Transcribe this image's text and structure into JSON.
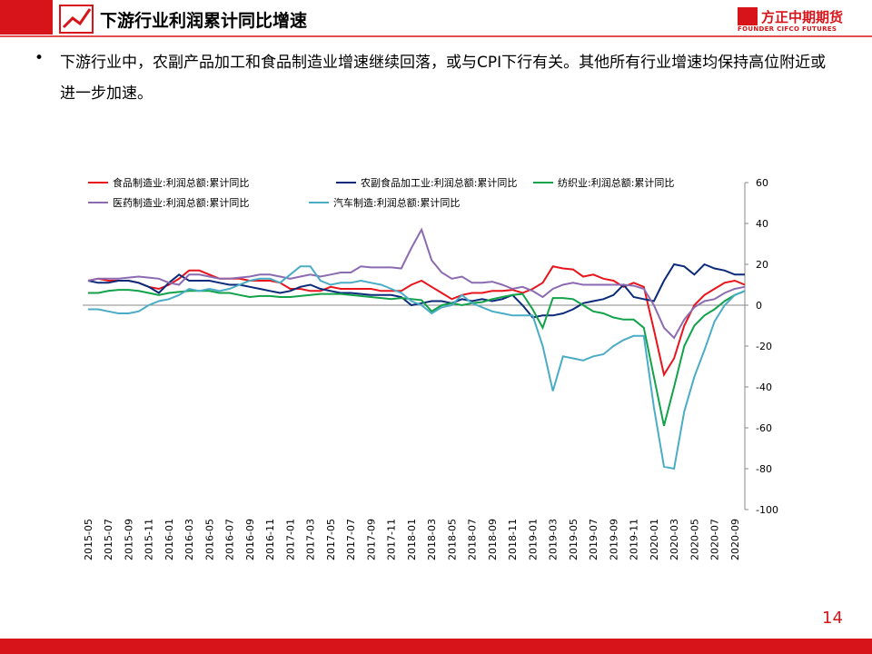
{
  "header": {
    "title": "下游行业利润累计同比增速",
    "logo": "方正中期期货",
    "logo_en": "FOUNDER CIFCO FUTURES"
  },
  "body": {
    "bullet": "下游行业中，农副产品加工和食品制造业增速继续回落，或与CPI下行有关。其他所有行业增速均保持高位附近或进一步加速。"
  },
  "footer": {
    "page": "14"
  },
  "chart_data": {
    "type": "line",
    "categories": [
      "2015-05",
      null,
      "2015-07",
      null,
      "2015-09",
      null,
      "2015-11",
      null,
      "2016-01",
      null,
      "2016-03",
      null,
      "2016-05",
      null,
      "2016-07",
      null,
      "2016-09",
      null,
      "2016-11",
      null,
      "2017-01",
      null,
      "2017-03",
      null,
      "2017-05",
      null,
      "2017-07",
      null,
      "2017-09",
      null,
      "2017-11",
      null,
      "2018-01",
      null,
      "2018-03",
      null,
      "2018-05",
      null,
      "2018-07",
      null,
      "2018-09",
      null,
      "2018-11",
      null,
      "2019-01",
      null,
      "2019-03",
      null,
      "2019-05",
      null,
      "2019-07",
      null,
      "2019-09",
      null,
      "2019-11",
      null,
      "2020-01",
      null,
      "2020-03",
      null,
      "2020-05",
      null,
      "2020-07",
      null,
      "2020-09",
      null
    ],
    "ylim": [
      -100,
      60
    ],
    "yticks": [
      -100,
      -80,
      -60,
      -40,
      -20,
      0,
      20,
      40,
      60
    ],
    "series": [
      {
        "name": "食品制造业:利润总额:累计同比",
        "color": "#e8141c",
        "values": [
          12,
          13,
          12,
          12,
          12,
          11,
          9,
          8,
          10,
          13,
          17,
          17,
          15,
          13,
          13,
          13,
          12,
          12,
          12,
          11,
          8,
          8,
          7,
          7,
          9,
          8,
          8,
          8,
          8,
          7,
          7,
          7,
          10,
          12,
          9,
          6,
          3,
          5,
          6,
          6,
          7,
          7,
          7.5,
          6,
          8,
          11,
          19,
          18,
          17.5,
          14,
          15,
          13,
          12,
          9,
          11,
          9,
          -12,
          -34,
          -26,
          -10,
          0,
          5,
          8,
          11,
          12,
          10
        ]
      },
      {
        "name": "农副食品加工业:利润总额:累计同比",
        "color": "#0b2a7a",
        "values": [
          12,
          11,
          11,
          12,
          12,
          11,
          9,
          6,
          11,
          15,
          12,
          12,
          12,
          11,
          10,
          10,
          9,
          8,
          7,
          6,
          7,
          9,
          10,
          8,
          7,
          6,
          6,
          5.5,
          5,
          5,
          5,
          4,
          0,
          1,
          2,
          2,
          1,
          3,
          2,
          3,
          2,
          3,
          5,
          0,
          -6,
          -5,
          -5,
          -4,
          -2,
          1,
          2,
          3,
          5,
          10,
          4,
          3,
          2,
          12,
          20,
          19,
          15,
          20,
          18,
          17,
          15,
          15
        ]
      },
      {
        "name": "纺织业:利润总额:累计同比",
        "color": "#12a24a",
        "values": [
          6,
          6,
          7,
          7.5,
          7.5,
          7,
          6,
          5,
          6,
          6.5,
          7,
          7,
          7,
          6,
          6,
          5,
          4,
          4.5,
          4.5,
          4,
          4,
          4.5,
          5,
          5.5,
          5.5,
          5.5,
          5,
          4.5,
          4,
          3.5,
          3,
          3.5,
          3,
          2.5,
          -3,
          0,
          1,
          0,
          1,
          1.5,
          3,
          4,
          5,
          5.5,
          -2,
          -11,
          3.5,
          3.5,
          3,
          0,
          -3,
          -4,
          -6,
          -7,
          -7,
          -11,
          -35,
          -59,
          -40,
          -20,
          -10,
          -5,
          -2,
          2,
          5,
          7
        ]
      },
      {
        "name": "医药制造业:利润总额:累计同比",
        "color": "#8c6bb1",
        "values": [
          12,
          13,
          13,
          13,
          13.5,
          14,
          13.5,
          13,
          11,
          10,
          15,
          15,
          14,
          13,
          13,
          13.5,
          14,
          15,
          15,
          14,
          13,
          14,
          15,
          14,
          15,
          16,
          16,
          19,
          18.5,
          18.5,
          18.5,
          18,
          28,
          37,
          22,
          16,
          13,
          14,
          11,
          11,
          11.5,
          10,
          8,
          9,
          7,
          4,
          8,
          10,
          11,
          10,
          10,
          10,
          10,
          10,
          9.5,
          8,
          0,
          -11,
          -16,
          -7,
          -1,
          2,
          3,
          6,
          8,
          9
        ]
      },
      {
        "name": "汽车制造:利润总额:累计同比",
        "color": "#4bacc6",
        "values": [
          -2,
          -2,
          -3,
          -4,
          -4,
          -3,
          0,
          2,
          3,
          5,
          8,
          7,
          8,
          7,
          8,
          10,
          12,
          13,
          13,
          11,
          15,
          19,
          19,
          12,
          10,
          11,
          11,
          12,
          11,
          10,
          8,
          6,
          2,
          0,
          -4,
          -1,
          0,
          5,
          1,
          -1,
          -3,
          -4,
          -5,
          -5,
          -5,
          -20,
          -42,
          -25,
          -26,
          -27,
          -25,
          -24,
          -20,
          -17,
          -15,
          -15,
          -50,
          -79,
          -80,
          -52,
          -35,
          -22,
          -8,
          0,
          5,
          7
        ]
      }
    ]
  }
}
